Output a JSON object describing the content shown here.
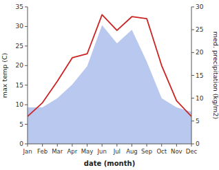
{
  "chart_data": {
    "type": "line",
    "categories": [
      "Jan",
      "Feb",
      "Mar",
      "Apr",
      "May",
      "Jun",
      "Jul",
      "Aug",
      "Sep",
      "Oct",
      "Nov",
      "Dec"
    ],
    "xlabel": "date (month)",
    "ylabel": "max temp (C)",
    "y2label": "med. precipitation (kg/m2)",
    "ylim": [
      0,
      35
    ],
    "yticks": [
      0,
      5,
      10,
      15,
      20,
      25,
      30,
      35
    ],
    "y2lim": [
      0,
      30
    ],
    "y2ticks": [
      0,
      5,
      10,
      15,
      20,
      25,
      30
    ],
    "grid": false,
    "series": [
      {
        "type": "area",
        "axis": "y2",
        "color": "#b8c8ee",
        "values": [
          8,
          8,
          10,
          13,
          17,
          26,
          22,
          25,
          18,
          10,
          8,
          7
        ]
      },
      {
        "type": "line",
        "color": "#cc2222",
        "values": [
          7,
          10.5,
          16,
          22,
          23,
          33,
          29,
          32.5,
          32,
          20,
          11,
          7
        ]
      }
    ]
  }
}
